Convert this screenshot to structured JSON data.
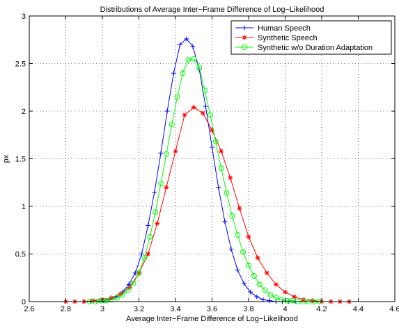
{
  "chart_data": {
    "type": "line",
    "title": "Distributions of Average Inter−Frame Difference of Log−Likelihood",
    "xlabel": "Average Inter−Frame Difference of Log−Likelihood",
    "ylabel": "px",
    "xlim": [
      2.6,
      4.6
    ],
    "ylim": [
      0,
      3
    ],
    "xticks": [
      2.6,
      2.8,
      3,
      3.2,
      3.4,
      3.6,
      3.8,
      4,
      4.2,
      4.4,
      4.6
    ],
    "xtick_labels": [
      "2.6",
      "2.8",
      "3",
      "3.2",
      "3.4",
      "3.6",
      "3.8",
      "4",
      "4.2",
      "4.4",
      "4.6"
    ],
    "yticks": [
      0,
      0.5,
      1,
      1.5,
      2,
      2.5,
      3
    ],
    "ytick_labels": [
      "0",
      "0.5",
      "1",
      "1.5",
      "2",
      "2.5",
      "3"
    ],
    "grid": true,
    "legend_position": "top-right",
    "series": [
      {
        "name": "Human Speech",
        "color": "#0000ff",
        "marker": "plus",
        "x": [
          2.9,
          2.935,
          2.97,
          3.005,
          3.04,
          3.075,
          3.11,
          3.145,
          3.18,
          3.215,
          3.25,
          3.285,
          3.32,
          3.355,
          3.39,
          3.425,
          3.46,
          3.495,
          3.53,
          3.565,
          3.6,
          3.635,
          3.67,
          3.705,
          3.74,
          3.775,
          3.81,
          3.845,
          3.88,
          3.915,
          3.95,
          3.985,
          4.02,
          4.055
        ],
        "y": [
          0.0,
          0.0,
          0.0,
          0.01,
          0.02,
          0.05,
          0.1,
          0.18,
          0.3,
          0.5,
          0.8,
          1.15,
          1.56,
          2.0,
          2.4,
          2.7,
          2.76,
          2.68,
          2.44,
          2.05,
          1.62,
          1.2,
          0.84,
          0.55,
          0.33,
          0.19,
          0.1,
          0.05,
          0.02,
          0.01,
          0.0,
          0.0,
          0.0,
          0.0
        ]
      },
      {
        "name": "Synthetic Speech",
        "color": "#ff0000",
        "marker": "star",
        "x": [
          2.8,
          2.85,
          2.9,
          2.95,
          3.0,
          3.05,
          3.1,
          3.15,
          3.2,
          3.25,
          3.3,
          3.35,
          3.4,
          3.45,
          3.5,
          3.55,
          3.6,
          3.65,
          3.7,
          3.75,
          3.8,
          3.85,
          3.9,
          3.95,
          4.0,
          4.05,
          4.1,
          4.15,
          4.2,
          4.25,
          4.3,
          4.35
        ],
        "y": [
          0.0,
          0.0,
          0.0,
          0.01,
          0.02,
          0.04,
          0.08,
          0.15,
          0.3,
          0.5,
          0.82,
          1.2,
          1.58,
          1.96,
          2.04,
          1.98,
          1.8,
          1.58,
          1.3,
          0.98,
          0.68,
          0.46,
          0.3,
          0.18,
          0.1,
          0.05,
          0.02,
          0.01,
          0.0,
          0.0,
          0.0,
          0.0
        ]
      },
      {
        "name": "Synthetic w/o Duration Adaptation",
        "color": "#00ff00",
        "marker": "circle",
        "x": [
          2.93,
          2.96,
          2.99,
          3.02,
          3.05,
          3.08,
          3.11,
          3.14,
          3.17,
          3.2,
          3.23,
          3.26,
          3.29,
          3.32,
          3.35,
          3.38,
          3.41,
          3.44,
          3.47,
          3.5,
          3.53,
          3.56,
          3.59,
          3.62,
          3.65,
          3.68,
          3.71,
          3.74,
          3.77,
          3.8,
          3.83,
          3.86,
          3.89,
          3.92,
          3.95,
          3.98,
          4.01,
          4.04,
          4.07,
          4.1,
          4.13,
          4.16,
          4.19
        ],
        "y": [
          0.0,
          0.0,
          0.01,
          0.01,
          0.02,
          0.04,
          0.07,
          0.12,
          0.19,
          0.3,
          0.46,
          0.68,
          0.94,
          1.24,
          1.55,
          1.86,
          2.15,
          2.4,
          2.54,
          2.55,
          2.46,
          2.22,
          1.96,
          1.68,
          1.4,
          1.14,
          0.9,
          0.7,
          0.52,
          0.38,
          0.27,
          0.18,
          0.12,
          0.07,
          0.04,
          0.02,
          0.01,
          0.01,
          0.0,
          0.0,
          0.0,
          0.0,
          0.0
        ]
      }
    ]
  }
}
